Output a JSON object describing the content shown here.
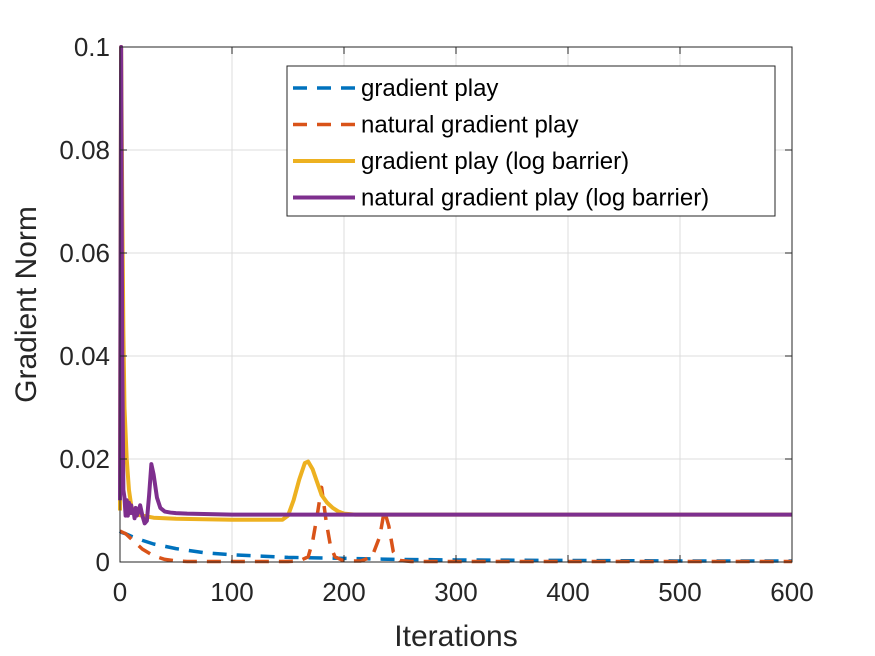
{
  "chart_data": {
    "type": "line",
    "title": "",
    "xlabel": "Iterations",
    "ylabel": "Gradient Norm",
    "xlim": [
      0,
      600
    ],
    "ylim": [
      0,
      0.1
    ],
    "xticks": [
      0,
      100,
      200,
      300,
      400,
      500,
      600
    ],
    "xtick_labels": [
      "0",
      "100",
      "200",
      "300",
      "400",
      "500",
      "600"
    ],
    "yticks": [
      0,
      0.02,
      0.04,
      0.06,
      0.08,
      0.1
    ],
    "ytick_labels": [
      "0",
      "0.02",
      "0.04",
      "0.06",
      "0.08",
      "0.1"
    ],
    "grid": true,
    "legend_position": "top-right",
    "series": [
      {
        "name": "gradient play",
        "color": "#0072BD",
        "style": "dashed",
        "x": [
          0,
          1,
          2,
          5,
          10,
          20,
          30,
          50,
          75,
          100,
          150,
          200,
          250,
          300,
          400,
          500,
          600
        ],
        "y": [
          0.006,
          0.0058,
          0.0057,
          0.0055,
          0.005,
          0.0042,
          0.0035,
          0.0026,
          0.0018,
          0.0014,
          0.0009,
          0.0007,
          0.0005,
          0.0004,
          0.0003,
          0.0002,
          0.0002
        ]
      },
      {
        "name": "natural gradient play",
        "color": "#D95319",
        "style": "dashed",
        "x": [
          0,
          5,
          10,
          20,
          30,
          40,
          50,
          60,
          100,
          150,
          160,
          168,
          172,
          176,
          180,
          184,
          188,
          192,
          200,
          215,
          225,
          232,
          236,
          240,
          244,
          250,
          260,
          300,
          400,
          500,
          600
        ],
        "y": [
          0.006,
          0.0055,
          0.0045,
          0.0025,
          0.0012,
          0.0005,
          0.0002,
          0.0001,
          0.0001,
          0.0001,
          0.0002,
          0.001,
          0.004,
          0.009,
          0.0145,
          0.008,
          0.003,
          0.001,
          0.0002,
          0.0002,
          0.001,
          0.005,
          0.01,
          0.007,
          0.002,
          0.0003,
          0.0001,
          0.0001,
          0.0001,
          0.0001,
          0.0001
        ]
      },
      {
        "name": "gradient play (log barrier)",
        "color": "#EDB120",
        "style": "solid",
        "x": [
          0,
          1,
          2,
          3,
          4,
          6,
          8,
          10,
          12,
          15,
          20,
          30,
          50,
          100,
          145,
          150,
          155,
          160,
          165,
          168,
          172,
          176,
          180,
          185,
          190,
          195,
          200,
          210,
          300,
          400,
          500,
          600
        ],
        "y": [
          0.01,
          0.1,
          0.07,
          0.045,
          0.03,
          0.02,
          0.014,
          0.011,
          0.0095,
          0.0092,
          0.009,
          0.0086,
          0.0084,
          0.0082,
          0.0082,
          0.009,
          0.012,
          0.016,
          0.0192,
          0.0195,
          0.018,
          0.0155,
          0.013,
          0.0115,
          0.0105,
          0.0098,
          0.0094,
          0.0092,
          0.0092,
          0.0092,
          0.0092,
          0.0092
        ]
      },
      {
        "name": "natural gradient play (log barrier)",
        "color": "#7E2F8E",
        "style": "solid",
        "x": [
          0,
          1,
          2,
          3,
          4,
          5,
          6,
          7,
          8,
          9,
          10,
          11,
          12,
          13,
          14,
          15,
          16,
          18,
          20,
          22,
          24,
          26,
          28,
          30,
          33,
          36,
          40,
          45,
          50,
          60,
          80,
          100,
          150,
          200,
          300,
          400,
          500,
          600
        ],
        "y": [
          0.012,
          0.1,
          0.04,
          0.014,
          0.0125,
          0.009,
          0.012,
          0.009,
          0.0115,
          0.0095,
          0.011,
          0.0095,
          0.01,
          0.0085,
          0.0105,
          0.009,
          0.0095,
          0.011,
          0.009,
          0.0075,
          0.008,
          0.013,
          0.019,
          0.017,
          0.0125,
          0.0105,
          0.0098,
          0.0096,
          0.0095,
          0.0094,
          0.0093,
          0.0092,
          0.0092,
          0.0092,
          0.0092,
          0.0092,
          0.0092,
          0.0092
        ]
      }
    ]
  }
}
